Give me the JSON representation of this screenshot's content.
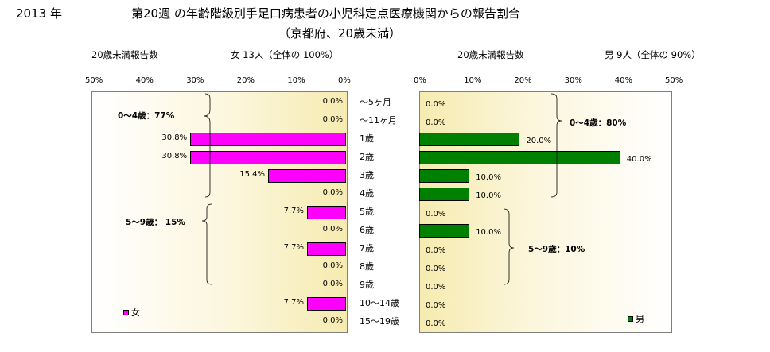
{
  "title": {
    "year": "2013 年",
    "line1": "第20週 の年齢階級別手足口病患者の小児科定点医療機関からの報告割合",
    "line2": "（京都府、20歳未満）"
  },
  "categories": [
    "～5ヶ月",
    "～11ヶ月",
    "1歳",
    "2歳",
    "3歳",
    "4歳",
    "5歳",
    "6歳",
    "7歳",
    "8歳",
    "9歳",
    "10～14歳",
    "15～19歳"
  ],
  "colors": {
    "female": "#ff00ff",
    "male": "#008000"
  },
  "chart_data": [
    {
      "type": "bar",
      "orientation": "horizontal",
      "direction": "right-to-left",
      "header_left": "20歳未満報告数",
      "header_right": "女  13人（全体の   100%）",
      "xlim": [
        0,
        50
      ],
      "ticks": [
        "50%",
        "40%",
        "30%",
        "20%",
        "10%",
        "0%"
      ],
      "series": [
        {
          "name": "女",
          "values": [
            0.0,
            0.0,
            30.8,
            30.8,
            15.4,
            0.0,
            7.7,
            0.0,
            7.7,
            0.0,
            0.0,
            7.7,
            0.0
          ]
        }
      ],
      "value_labels": [
        "0.0%",
        "0.0%",
        "30.8%",
        "30.8%",
        "15.4%",
        "0.0%",
        "7.7%",
        "0.0%",
        "7.7%",
        "0.0%",
        "0.0%",
        "7.7%",
        "0.0%"
      ],
      "annotations": [
        "0～4歳：77%",
        "5～9歳：  15%"
      ],
      "legend": "bottom-left"
    },
    {
      "type": "bar",
      "orientation": "horizontal",
      "direction": "left-to-right",
      "header_left": "20歳未満報告数",
      "header_right": "男   9人（全体の    90%）",
      "xlim": [
        0,
        50
      ],
      "ticks": [
        "0%",
        "10%",
        "20%",
        "30%",
        "40%",
        "50%"
      ],
      "series": [
        {
          "name": "男",
          "values": [
            0.0,
            0.0,
            20.0,
            40.0,
            10.0,
            10.0,
            0.0,
            10.0,
            0.0,
            0.0,
            0.0,
            0.0,
            0.0
          ]
        }
      ],
      "value_labels": [
        "0.0%",
        "0.0%",
        "20.0%",
        "40.0%",
        "10.0%",
        "10.0%",
        "0.0%",
        "10.0%",
        "0.0%",
        "0.0%",
        "0.0%",
        "0.0%",
        "0.0%"
      ],
      "annotations": [
        "0～4歳：80%",
        "5～9歳：10%"
      ],
      "legend": "bottom-right"
    }
  ]
}
